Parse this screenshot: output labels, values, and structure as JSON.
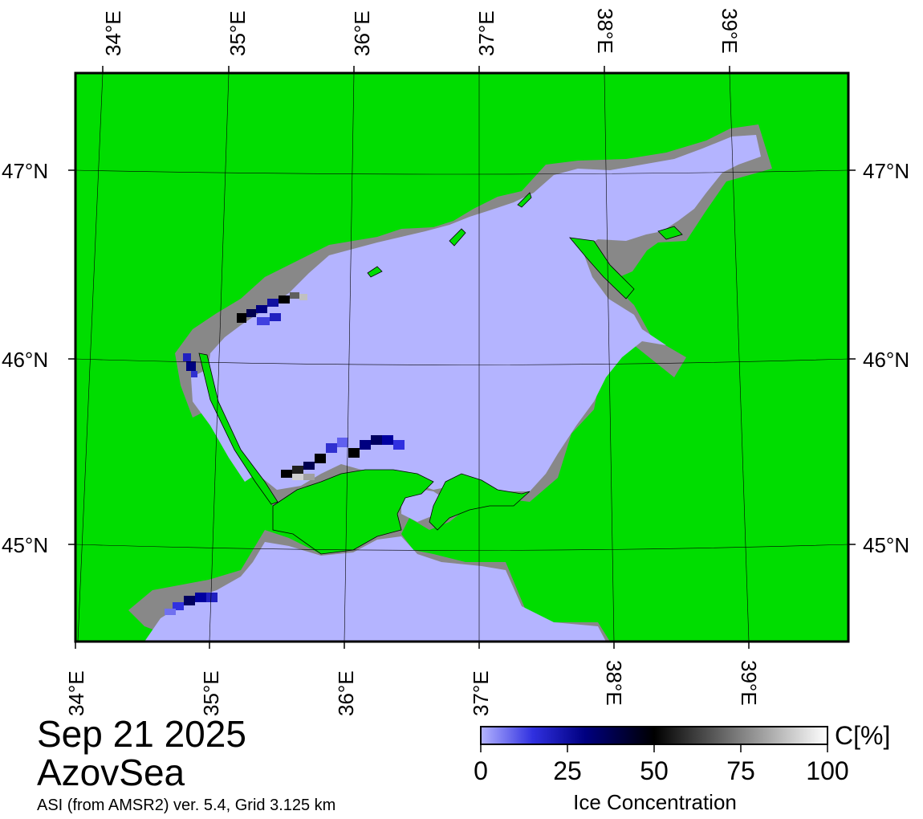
{
  "map": {
    "colors": {
      "land": "#00dd00",
      "coast_mask": "#888888",
      "water": "#b4b4ff",
      "frame": "#000000"
    },
    "top_lon_labels": [
      "34°E",
      "35°E",
      "36°E",
      "37°E",
      "38°E",
      "39°E"
    ],
    "bottom_lon_labels": [
      "34°E",
      "35°E",
      "36°E",
      "37°E",
      "38°E",
      "39°E"
    ],
    "left_lat_labels": [
      "47°N",
      "46°N",
      "45°N"
    ],
    "right_lat_labels": [
      "47°N",
      "46°N",
      "45°N"
    ]
  },
  "caption": {
    "date": "Sep 21 2025",
    "region": "AzovSea",
    "product": "ASI (from AMSR2) ver. 5.4,  Grid 3.125 km"
  },
  "colorbar": {
    "unit": "C[%]",
    "label": "Ice Concentration",
    "ticks": [
      "0",
      "25",
      "50",
      "75",
      "100"
    ],
    "stops": [
      "#b4b4ff",
      "#3030e0",
      "#000080",
      "#000000",
      "#808080",
      "#ffffff"
    ]
  }
}
